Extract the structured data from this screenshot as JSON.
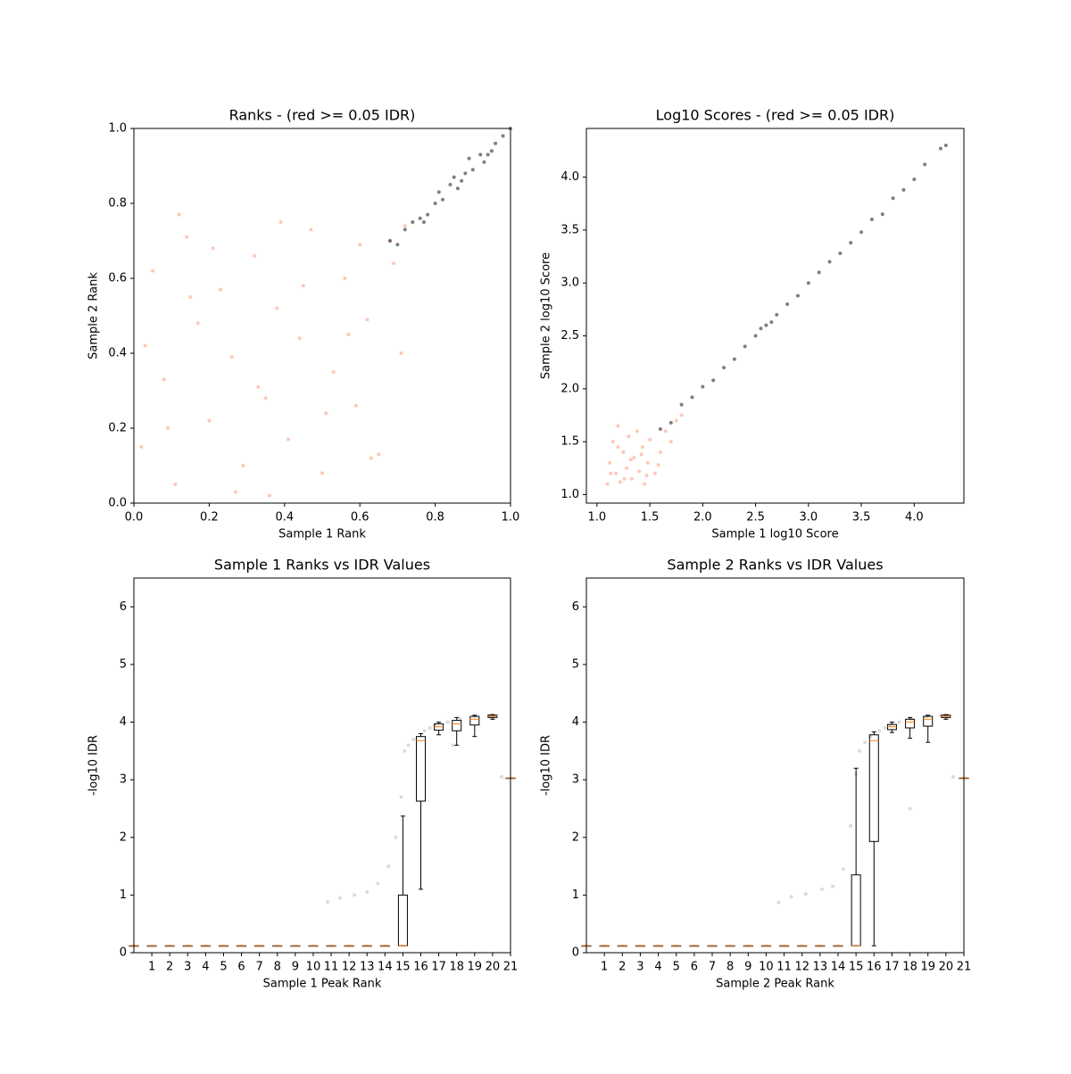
{
  "chart_data": [
    {
      "type": "scatter",
      "title": "Ranks - (red >= 0.05 IDR)",
      "xlabel": "Sample 1 Rank",
      "ylabel": "Sample 2 Rank",
      "xlim": [
        0,
        1
      ],
      "ylim": [
        0,
        1
      ],
      "xticks": [
        {
          "value": 0,
          "label": "0.0"
        },
        {
          "value": 0.2,
          "label": "0.2"
        },
        {
          "value": 0.4,
          "label": "0.4"
        },
        {
          "value": 0.6,
          "label": "0.6"
        },
        {
          "value": 0.8,
          "label": "0.8"
        },
        {
          "value": 1,
          "label": "1.0"
        }
      ],
      "yticks": [
        {
          "value": 0,
          "label": "0.0"
        },
        {
          "value": 0.2,
          "label": "0.2"
        },
        {
          "value": 0.4,
          "label": "0.4"
        },
        {
          "value": 0.6,
          "label": "0.6"
        },
        {
          "value": 0.8,
          "label": "0.8"
        },
        {
          "value": 1,
          "label": "1.0"
        }
      ],
      "series": [
        {
          "color": "#fc9272",
          "x": [
            0.02,
            0.05,
            0.08,
            0.11,
            0.14,
            0.17,
            0.2,
            0.23,
            0.26,
            0.29,
            0.32,
            0.35,
            0.38,
            0.41,
            0.44,
            0.47,
            0.5,
            0.53,
            0.56,
            0.59,
            0.62,
            0.65,
            0.68,
            0.71,
            0.03,
            0.09,
            0.15,
            0.21,
            0.27,
            0.33,
            0.39,
            0.45,
            0.51,
            0.57,
            0.63,
            0.69,
            0.72,
            0.12,
            0.36,
            0.6
          ],
          "y": [
            0.15,
            0.62,
            0.33,
            0.05,
            0.71,
            0.48,
            0.22,
            0.57,
            0.39,
            0.1,
            0.66,
            0.28,
            0.52,
            0.17,
            0.44,
            0.73,
            0.08,
            0.35,
            0.6,
            0.26,
            0.49,
            0.13,
            0.7,
            0.4,
            0.42,
            0.2,
            0.55,
            0.68,
            0.03,
            0.31,
            0.75,
            0.58,
            0.24,
            0.45,
            0.12,
            0.64,
            0.74,
            0.77,
            0.02,
            0.69
          ]
        },
        {
          "color": "#000000",
          "x": [
            0.68,
            0.7,
            0.72,
            0.74,
            0.76,
            0.78,
            0.8,
            0.82,
            0.84,
            0.86,
            0.88,
            0.9,
            0.92,
            0.94,
            0.96,
            0.98,
            1.0,
            0.81,
            0.87,
            0.93,
            0.89,
            0.85,
            0.95,
            0.77
          ],
          "y": [
            0.7,
            0.69,
            0.73,
            0.75,
            0.76,
            0.77,
            0.8,
            0.81,
            0.85,
            0.84,
            0.88,
            0.89,
            0.93,
            0.93,
            0.96,
            0.98,
            1.0,
            0.83,
            0.86,
            0.91,
            0.92,
            0.87,
            0.94,
            0.75
          ]
        }
      ]
    },
    {
      "type": "scatter",
      "title": "Log10 Scores - (red >= 0.05 IDR)",
      "xlabel": "Sample 1 log10 Score",
      "ylabel": "Sample 2 log10 Score",
      "xlim": [
        0.9,
        4.47
      ],
      "ylim": [
        0.92,
        4.46
      ],
      "xticks": [
        {
          "value": 1,
          "label": "1.0"
        },
        1.5,
        {
          "value": 2,
          "label": "2.0"
        },
        2.5,
        {
          "value": 3,
          "label": "3.0"
        },
        3.5,
        {
          "value": 4,
          "label": "4.0"
        }
      ],
      "yticks": [
        {
          "value": 1,
          "label": "1.0"
        },
        1.5,
        {
          "value": 2,
          "label": "2.0"
        },
        2.5,
        {
          "value": 3,
          "label": "3.0"
        },
        3.5,
        {
          "value": 4,
          "label": "4.0"
        }
      ],
      "series": [
        {
          "color": "#fc9272",
          "x": [
            1.1,
            1.12,
            1.15,
            1.18,
            1.2,
            1.22,
            1.25,
            1.28,
            1.3,
            1.33,
            1.35,
            1.38,
            1.4,
            1.43,
            1.45,
            1.48,
            1.5,
            1.55,
            1.6,
            1.65,
            1.7,
            1.75,
            1.8,
            1.13,
            1.26,
            1.42,
            1.58,
            1.2,
            1.32,
            1.47
          ],
          "y": [
            1.1,
            1.3,
            1.5,
            1.2,
            1.65,
            1.12,
            1.4,
            1.25,
            1.55,
            1.15,
            1.35,
            1.6,
            1.22,
            1.45,
            1.1,
            1.3,
            1.52,
            1.2,
            1.4,
            1.6,
            1.5,
            1.7,
            1.75,
            1.2,
            1.15,
            1.38,
            1.28,
            1.45,
            1.33,
            1.18
          ]
        },
        {
          "color": "#000000",
          "x": [
            1.6,
            1.7,
            1.8,
            1.9,
            2.0,
            2.1,
            2.2,
            2.3,
            2.4,
            2.5,
            2.55,
            2.6,
            2.65,
            2.7,
            2.8,
            2.9,
            3.0,
            3.1,
            3.2,
            3.3,
            3.4,
            3.5,
            3.6,
            3.7,
            3.8,
            3.9,
            4.0,
            4.1,
            4.25,
            4.3
          ],
          "y": [
            1.62,
            1.68,
            1.85,
            1.92,
            2.02,
            2.08,
            2.2,
            2.28,
            2.4,
            2.5,
            2.57,
            2.6,
            2.63,
            2.7,
            2.8,
            2.88,
            3.0,
            3.1,
            3.2,
            3.28,
            3.38,
            3.48,
            3.6,
            3.65,
            3.8,
            3.88,
            3.98,
            4.12,
            4.27,
            4.3
          ]
        }
      ]
    },
    {
      "type": "box",
      "title": "Sample 1 Ranks vs IDR Values",
      "xlabel": "Sample 1 Peak Rank",
      "ylabel": "-log10 IDR",
      "xlim": [
        0,
        21
      ],
      "ylim": [
        0,
        6.5
      ],
      "xticks": [
        1,
        2,
        3,
        4,
        5,
        6,
        7,
        8,
        9,
        10,
        11,
        12,
        13,
        14,
        15,
        16,
        17,
        18,
        19,
        20,
        21
      ],
      "yticks": [
        0,
        1,
        2,
        3,
        4,
        5,
        6
      ],
      "positions": [
        0,
        1,
        2,
        3,
        4,
        5,
        6,
        7,
        8,
        9,
        10,
        11,
        12,
        13,
        14,
        15,
        16,
        17,
        18,
        19,
        20,
        21
      ],
      "boxes": [
        {
          "whislo": 0.12,
          "q1": 0.12,
          "med": 0.12,
          "q3": 0.12,
          "whishi": 0.12
        },
        {
          "whislo": 0.12,
          "q1": 0.12,
          "med": 0.12,
          "q3": 0.12,
          "whishi": 0.12
        },
        {
          "whislo": 0.12,
          "q1": 0.12,
          "med": 0.12,
          "q3": 0.12,
          "whishi": 0.12
        },
        {
          "whislo": 0.12,
          "q1": 0.12,
          "med": 0.12,
          "q3": 0.12,
          "whishi": 0.12
        },
        {
          "whislo": 0.12,
          "q1": 0.12,
          "med": 0.12,
          "q3": 0.12,
          "whishi": 0.12
        },
        {
          "whislo": 0.12,
          "q1": 0.12,
          "med": 0.12,
          "q3": 0.12,
          "whishi": 0.12
        },
        {
          "whislo": 0.12,
          "q1": 0.12,
          "med": 0.12,
          "q3": 0.12,
          "whishi": 0.12
        },
        {
          "whislo": 0.12,
          "q1": 0.12,
          "med": 0.12,
          "q3": 0.12,
          "whishi": 0.12
        },
        {
          "whislo": 0.12,
          "q1": 0.12,
          "med": 0.12,
          "q3": 0.12,
          "whishi": 0.12
        },
        {
          "whislo": 0.12,
          "q1": 0.12,
          "med": 0.12,
          "q3": 0.12,
          "whishi": 0.12
        },
        {
          "whislo": 0.12,
          "q1": 0.12,
          "med": 0.12,
          "q3": 0.12,
          "whishi": 0.12
        },
        {
          "whislo": 0.12,
          "q1": 0.12,
          "med": 0.12,
          "q3": 0.12,
          "whishi": 0.12
        },
        {
          "whislo": 0.12,
          "q1": 0.12,
          "med": 0.12,
          "q3": 0.12,
          "whishi": 0.12
        },
        {
          "whislo": 0.12,
          "q1": 0.12,
          "med": 0.12,
          "q3": 0.12,
          "whishi": 0.12
        },
        {
          "whislo": 0.12,
          "q1": 0.12,
          "med": 0.12,
          "q3": 0.12,
          "whishi": 0.12
        },
        {
          "whislo": 0.12,
          "q1": 0.12,
          "med": 0.12,
          "q3": 1.0,
          "whishi": 2.37
        },
        {
          "whislo": 1.1,
          "q1": 2.63,
          "med": 3.68,
          "q3": 3.75,
          "whishi": 3.8
        },
        {
          "whislo": 3.78,
          "q1": 3.86,
          "med": 3.92,
          "q3": 3.97,
          "whishi": 4.0
        },
        {
          "whislo": 3.6,
          "q1": 3.85,
          "med": 3.97,
          "q3": 4.03,
          "whishi": 4.08
        },
        {
          "whislo": 3.75,
          "q1": 3.95,
          "med": 4.05,
          "q3": 4.1,
          "whishi": 4.12
        },
        {
          "whislo": 4.05,
          "q1": 4.08,
          "med": 4.1,
          "q3": 4.12,
          "whishi": 4.13
        },
        {
          "whislo": 3.03,
          "q1": 3.03,
          "med": 3.03,
          "q3": 3.03,
          "whishi": 3.03
        }
      ],
      "points": {
        "color": "#999999",
        "x": [
          10.8,
          11.5,
          12.3,
          13.0,
          13.6,
          14.2,
          14.6,
          14.9,
          15.1,
          15.3,
          15.6,
          16.2,
          16.8,
          17.5,
          18.2,
          19.0,
          19.8,
          20.5,
          17.8,
          16.5
        ],
        "y": [
          0.88,
          0.95,
          1.0,
          1.05,
          1.2,
          1.5,
          2.0,
          2.7,
          3.5,
          3.6,
          3.7,
          3.85,
          3.95,
          4.0,
          4.05,
          4.1,
          4.12,
          3.05,
          3.6,
          3.9
        ]
      }
    },
    {
      "type": "box",
      "title": "Sample 2 Ranks vs IDR Values",
      "xlabel": "Sample 2 Peak Rank",
      "ylabel": "-log10 IDR",
      "xlim": [
        0,
        21
      ],
      "ylim": [
        0,
        6.5
      ],
      "xticks": [
        1,
        2,
        3,
        4,
        5,
        6,
        7,
        8,
        9,
        10,
        11,
        12,
        13,
        14,
        15,
        16,
        17,
        18,
        19,
        20,
        21
      ],
      "yticks": [
        0,
        1,
        2,
        3,
        4,
        5,
        6
      ],
      "positions": [
        0,
        1,
        2,
        3,
        4,
        5,
        6,
        7,
        8,
        9,
        10,
        11,
        12,
        13,
        14,
        15,
        16,
        17,
        18,
        19,
        20,
        21
      ],
      "boxes": [
        {
          "whislo": 0.12,
          "q1": 0.12,
          "med": 0.12,
          "q3": 0.12,
          "whishi": 0.12
        },
        {
          "whislo": 0.12,
          "q1": 0.12,
          "med": 0.12,
          "q3": 0.12,
          "whishi": 0.12
        },
        {
          "whislo": 0.12,
          "q1": 0.12,
          "med": 0.12,
          "q3": 0.12,
          "whishi": 0.12
        },
        {
          "whislo": 0.12,
          "q1": 0.12,
          "med": 0.12,
          "q3": 0.12,
          "whishi": 0.12
        },
        {
          "whislo": 0.12,
          "q1": 0.12,
          "med": 0.12,
          "q3": 0.12,
          "whishi": 0.12
        },
        {
          "whislo": 0.12,
          "q1": 0.12,
          "med": 0.12,
          "q3": 0.12,
          "whishi": 0.12
        },
        {
          "whislo": 0.12,
          "q1": 0.12,
          "med": 0.12,
          "q3": 0.12,
          "whishi": 0.12
        },
        {
          "whislo": 0.12,
          "q1": 0.12,
          "med": 0.12,
          "q3": 0.12,
          "whishi": 0.12
        },
        {
          "whislo": 0.12,
          "q1": 0.12,
          "med": 0.12,
          "q3": 0.12,
          "whishi": 0.12
        },
        {
          "whislo": 0.12,
          "q1": 0.12,
          "med": 0.12,
          "q3": 0.12,
          "whishi": 0.12
        },
        {
          "whislo": 0.12,
          "q1": 0.12,
          "med": 0.12,
          "q3": 0.12,
          "whishi": 0.12
        },
        {
          "whislo": 0.12,
          "q1": 0.12,
          "med": 0.12,
          "q3": 0.12,
          "whishi": 0.12
        },
        {
          "whislo": 0.12,
          "q1": 0.12,
          "med": 0.12,
          "q3": 0.12,
          "whishi": 0.12
        },
        {
          "whislo": 0.12,
          "q1": 0.12,
          "med": 0.12,
          "q3": 0.12,
          "whishi": 0.12
        },
        {
          "whislo": 0.12,
          "q1": 0.12,
          "med": 0.12,
          "q3": 0.12,
          "whishi": 0.12
        },
        {
          "whislo": 0.12,
          "q1": 0.12,
          "med": 0.12,
          "q3": 1.35,
          "whishi": 3.2
        },
        {
          "whislo": 0.12,
          "q1": 1.93,
          "med": 3.68,
          "q3": 3.78,
          "whishi": 3.83
        },
        {
          "whislo": 3.82,
          "q1": 3.87,
          "med": 3.92,
          "q3": 3.96,
          "whishi": 4.0
        },
        {
          "whislo": 3.72,
          "q1": 3.9,
          "med": 4.0,
          "q3": 4.05,
          "whishi": 4.08
        },
        {
          "whislo": 3.65,
          "q1": 3.93,
          "med": 4.05,
          "q3": 4.1,
          "whishi": 4.12
        },
        {
          "whislo": 4.05,
          "q1": 4.08,
          "med": 4.1,
          "q3": 4.12,
          "whishi": 4.13
        },
        {
          "whislo": 3.03,
          "q1": 3.03,
          "med": 3.03,
          "q3": 3.03,
          "whishi": 3.03
        }
      ],
      "points": {
        "color": "#999999",
        "x": [
          10.7,
          11.4,
          12.2,
          13.1,
          13.7,
          14.3,
          14.7,
          15.0,
          15.2,
          15.5,
          15.8,
          16.3,
          16.9,
          17.4,
          18.1,
          18.9,
          19.7,
          20.4,
          18.0,
          16.6
        ],
        "y": [
          0.87,
          0.97,
          1.02,
          1.1,
          1.15,
          1.45,
          2.2,
          3.1,
          3.5,
          3.65,
          3.75,
          3.85,
          3.95,
          4.0,
          4.05,
          4.1,
          4.12,
          3.05,
          2.5,
          3.9
        ]
      }
    }
  ]
}
